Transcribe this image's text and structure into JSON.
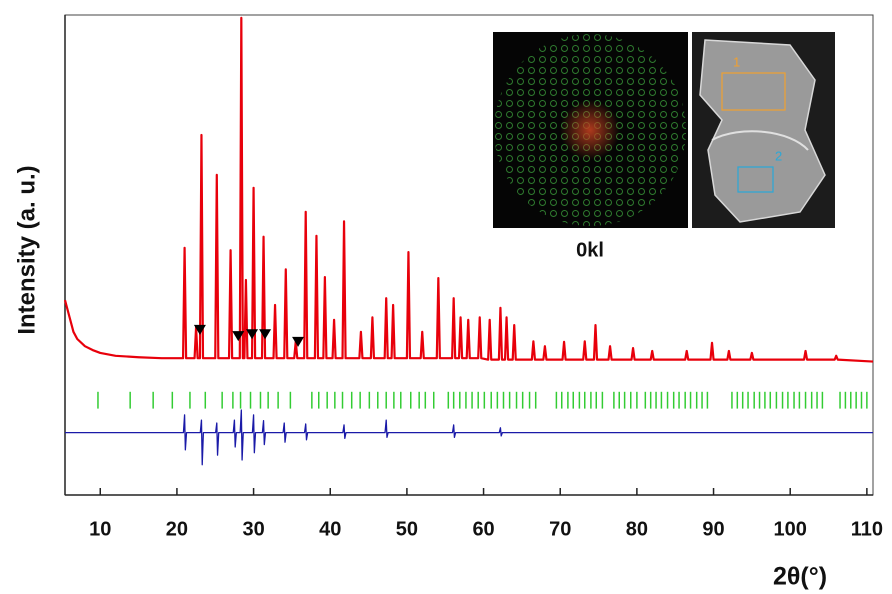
{
  "chart_data": {
    "type": "line",
    "x_label": "2θ(°)",
    "y_label": "Intensity (a. u.)",
    "xlim": [
      5.4,
      110.8
    ],
    "ylim": [
      0,
      100
    ],
    "xticks": [
      10,
      20,
      30,
      40,
      50,
      60,
      70,
      80,
      90,
      100,
      110
    ],
    "series": [
      {
        "color": "#e8000b",
        "x": [
          5.4,
          6,
          6.5,
          7,
          8,
          9,
          10,
          12,
          15,
          18,
          20.8,
          21,
          21.2,
          22.3,
          22.5,
          22.7,
          23,
          23.2,
          23.4,
          25,
          25.2,
          25.4,
          26.8,
          27,
          27.2,
          28.2,
          28.4,
          28.6,
          28.8,
          29,
          29.2,
          29.8,
          30,
          30.2,
          31.1,
          31.3,
          31.5,
          32.6,
          32.8,
          33,
          34,
          34.2,
          34.4,
          35.3,
          35.5,
          35.7,
          36.6,
          36.8,
          37,
          38,
          38.2,
          38.4,
          39.1,
          39.3,
          39.5,
          40.3,
          40.5,
          40.7,
          41.6,
          41.8,
          42,
          43.8,
          44,
          44.2,
          45.3,
          45.5,
          45.7,
          47.1,
          47.3,
          47.5,
          48,
          48.2,
          48.4,
          50,
          50.2,
          50.4,
          51.8,
          52,
          52.2,
          53.9,
          54.1,
          54.3,
          55.9,
          56.1,
          56.3,
          56.8,
          57,
          57.2,
          57.8,
          58,
          58.2,
          59.3,
          59.5,
          59.7,
          60.6,
          60.8,
          61,
          62,
          62.2,
          62.4,
          62.8,
          63,
          63.2,
          63.8,
          64,
          64.2,
          66.3,
          66.5,
          66.7,
          67.8,
          68,
          68.2,
          70.3,
          70.5,
          70.7,
          73,
          73.2,
          73.4,
          74.4,
          74.6,
          74.8,
          76.3,
          76.5,
          76.7,
          79.3,
          79.5,
          79.7,
          81.8,
          82,
          82.2,
          86.3,
          86.5,
          86.7,
          89.6,
          89.8,
          90,
          91.8,
          92,
          92.2,
          94.8,
          95,
          95.2,
          101.8,
          102,
          102.2,
          105.8,
          106,
          106.2,
          110.8
        ],
        "values": [
          40.6,
          37,
          34,
          32.5,
          31,
          30.2,
          29.6,
          29,
          28.7,
          28.5,
          28.5,
          51.5,
          28.5,
          28.5,
          35,
          28.5,
          28.5,
          75,
          28.5,
          28.5,
          66.7,
          28.5,
          28.5,
          51,
          28.5,
          28.5,
          99.4,
          28.5,
          28.5,
          44.8,
          28.5,
          28.5,
          64,
          28.5,
          28.5,
          53.8,
          28.5,
          28.5,
          39.6,
          28.5,
          28.5,
          47,
          28.5,
          28.5,
          32,
          28.5,
          28.5,
          59,
          28.5,
          28.5,
          54,
          28.5,
          28.5,
          45.4,
          28.5,
          28.5,
          36.5,
          28.5,
          28.5,
          57,
          28.5,
          28.5,
          34,
          28.5,
          28.5,
          37,
          28.5,
          28.5,
          41,
          28.5,
          28.5,
          39.6,
          28.5,
          28.5,
          50.6,
          28.5,
          28.5,
          34,
          28.5,
          28.5,
          45.2,
          28.5,
          28.5,
          41,
          28.5,
          28.5,
          37,
          28.5,
          28.5,
          36.5,
          28.5,
          28.5,
          37,
          28.5,
          28.2,
          36.5,
          28.2,
          28.2,
          39,
          28.2,
          28.2,
          37,
          28.2,
          28.2,
          35.4,
          28.2,
          28.2,
          32,
          28.2,
          28.2,
          31,
          28.2,
          28.2,
          31.9,
          28.2,
          28.2,
          32,
          28.2,
          28.2,
          35.4,
          28.2,
          28.2,
          31,
          28.2,
          28.2,
          30.6,
          28.2,
          28.2,
          30,
          28.2,
          28.2,
          30,
          28.2,
          28.2,
          31.7,
          28.2,
          28.2,
          30,
          28.2,
          28.2,
          29.6,
          28.2,
          28.2,
          30,
          28.2,
          28.2,
          29,
          28.2,
          27.8
        ]
      },
      {
        "color": "#1a1aa8",
        "x": [
          5.4,
          20.85,
          21,
          21.1,
          21.25,
          23.05,
          23.2,
          23.3,
          23.45,
          25.05,
          25.2,
          25.3,
          25.45,
          27.35,
          27.5,
          27.6,
          27.75,
          28.25,
          28.4,
          28.5,
          28.65,
          29.85,
          30,
          30.1,
          30.25,
          31.15,
          31.3,
          31.4,
          31.55,
          33.85,
          34,
          34.1,
          34.25,
          36.65,
          36.8,
          36.9,
          37.05,
          41.65,
          41.8,
          41.9,
          42.05,
          47.15,
          47.3,
          47.4,
          47.55,
          55.95,
          56.1,
          56.2,
          56.35,
          62.05,
          62.2,
          62.3,
          62.45,
          110.8
        ],
        "values": [
          13,
          13,
          16.7,
          9.4,
          13,
          13,
          15.6,
          6.3,
          13,
          13,
          15,
          8.3,
          13,
          13,
          15.6,
          10,
          13,
          13,
          17.7,
          7.3,
          13,
          13,
          16.7,
          8.8,
          13,
          13,
          15.5,
          10.5,
          13,
          13,
          15,
          11,
          13,
          13,
          14.8,
          11.5,
          13,
          13,
          14.6,
          11.8,
          13,
          13,
          15.6,
          12,
          13,
          13,
          14.6,
          12,
          13,
          13,
          14,
          12.3,
          13,
          13
        ]
      }
    ],
    "bragg": {
      "color": "#33cc33",
      "x": [
        9.7,
        13.9,
        16.9,
        19.4,
        21.7,
        23.7,
        25.9,
        27.3,
        28.3,
        29.6,
        30.9,
        31.9,
        33.2,
        34.8,
        37.6,
        38.5,
        39.6,
        40.6,
        41.6,
        42.8,
        43.9,
        45.1,
        46.2,
        47.3,
        48.3,
        49.2,
        50.5,
        51.6,
        52.4,
        53.5,
        55.4,
        56.1,
        56.9,
        57.7,
        58.5,
        59.3,
        60.1,
        61,
        61.8,
        62.6,
        63.4,
        64.3,
        65.1,
        66,
        66.8,
        69.5,
        70.2,
        71,
        71.7,
        72.5,
        73.2,
        74,
        74.7,
        75.5,
        77,
        77.7,
        78.4,
        79.2,
        80,
        81.1,
        81.8,
        82.5,
        83.2,
        84,
        84.8,
        85.5,
        86.3,
        87,
        87.8,
        88.5,
        89.2,
        92.4,
        93.1,
        93.8,
        94.5,
        95.3,
        96,
        96.7,
        97.4,
        98.2,
        99,
        99.7,
        100.5,
        101.2,
        102,
        102.8,
        103.5,
        104.2,
        106.5,
        107.2,
        107.9,
        108.6,
        109.3,
        110
      ]
    },
    "markers": {
      "color": "#000000",
      "x": [
        23.0,
        28.0,
        29.8,
        31.5,
        35.8
      ],
      "values": [
        34.4,
        33.1,
        33.5,
        33.5,
        31.9
      ]
    },
    "insets": {
      "pattern_label": "0kl",
      "region_labels": [
        {
          "text": "1",
          "color": "#f0a030"
        },
        {
          "text": "2",
          "color": "#2aa8d8"
        }
      ]
    }
  }
}
